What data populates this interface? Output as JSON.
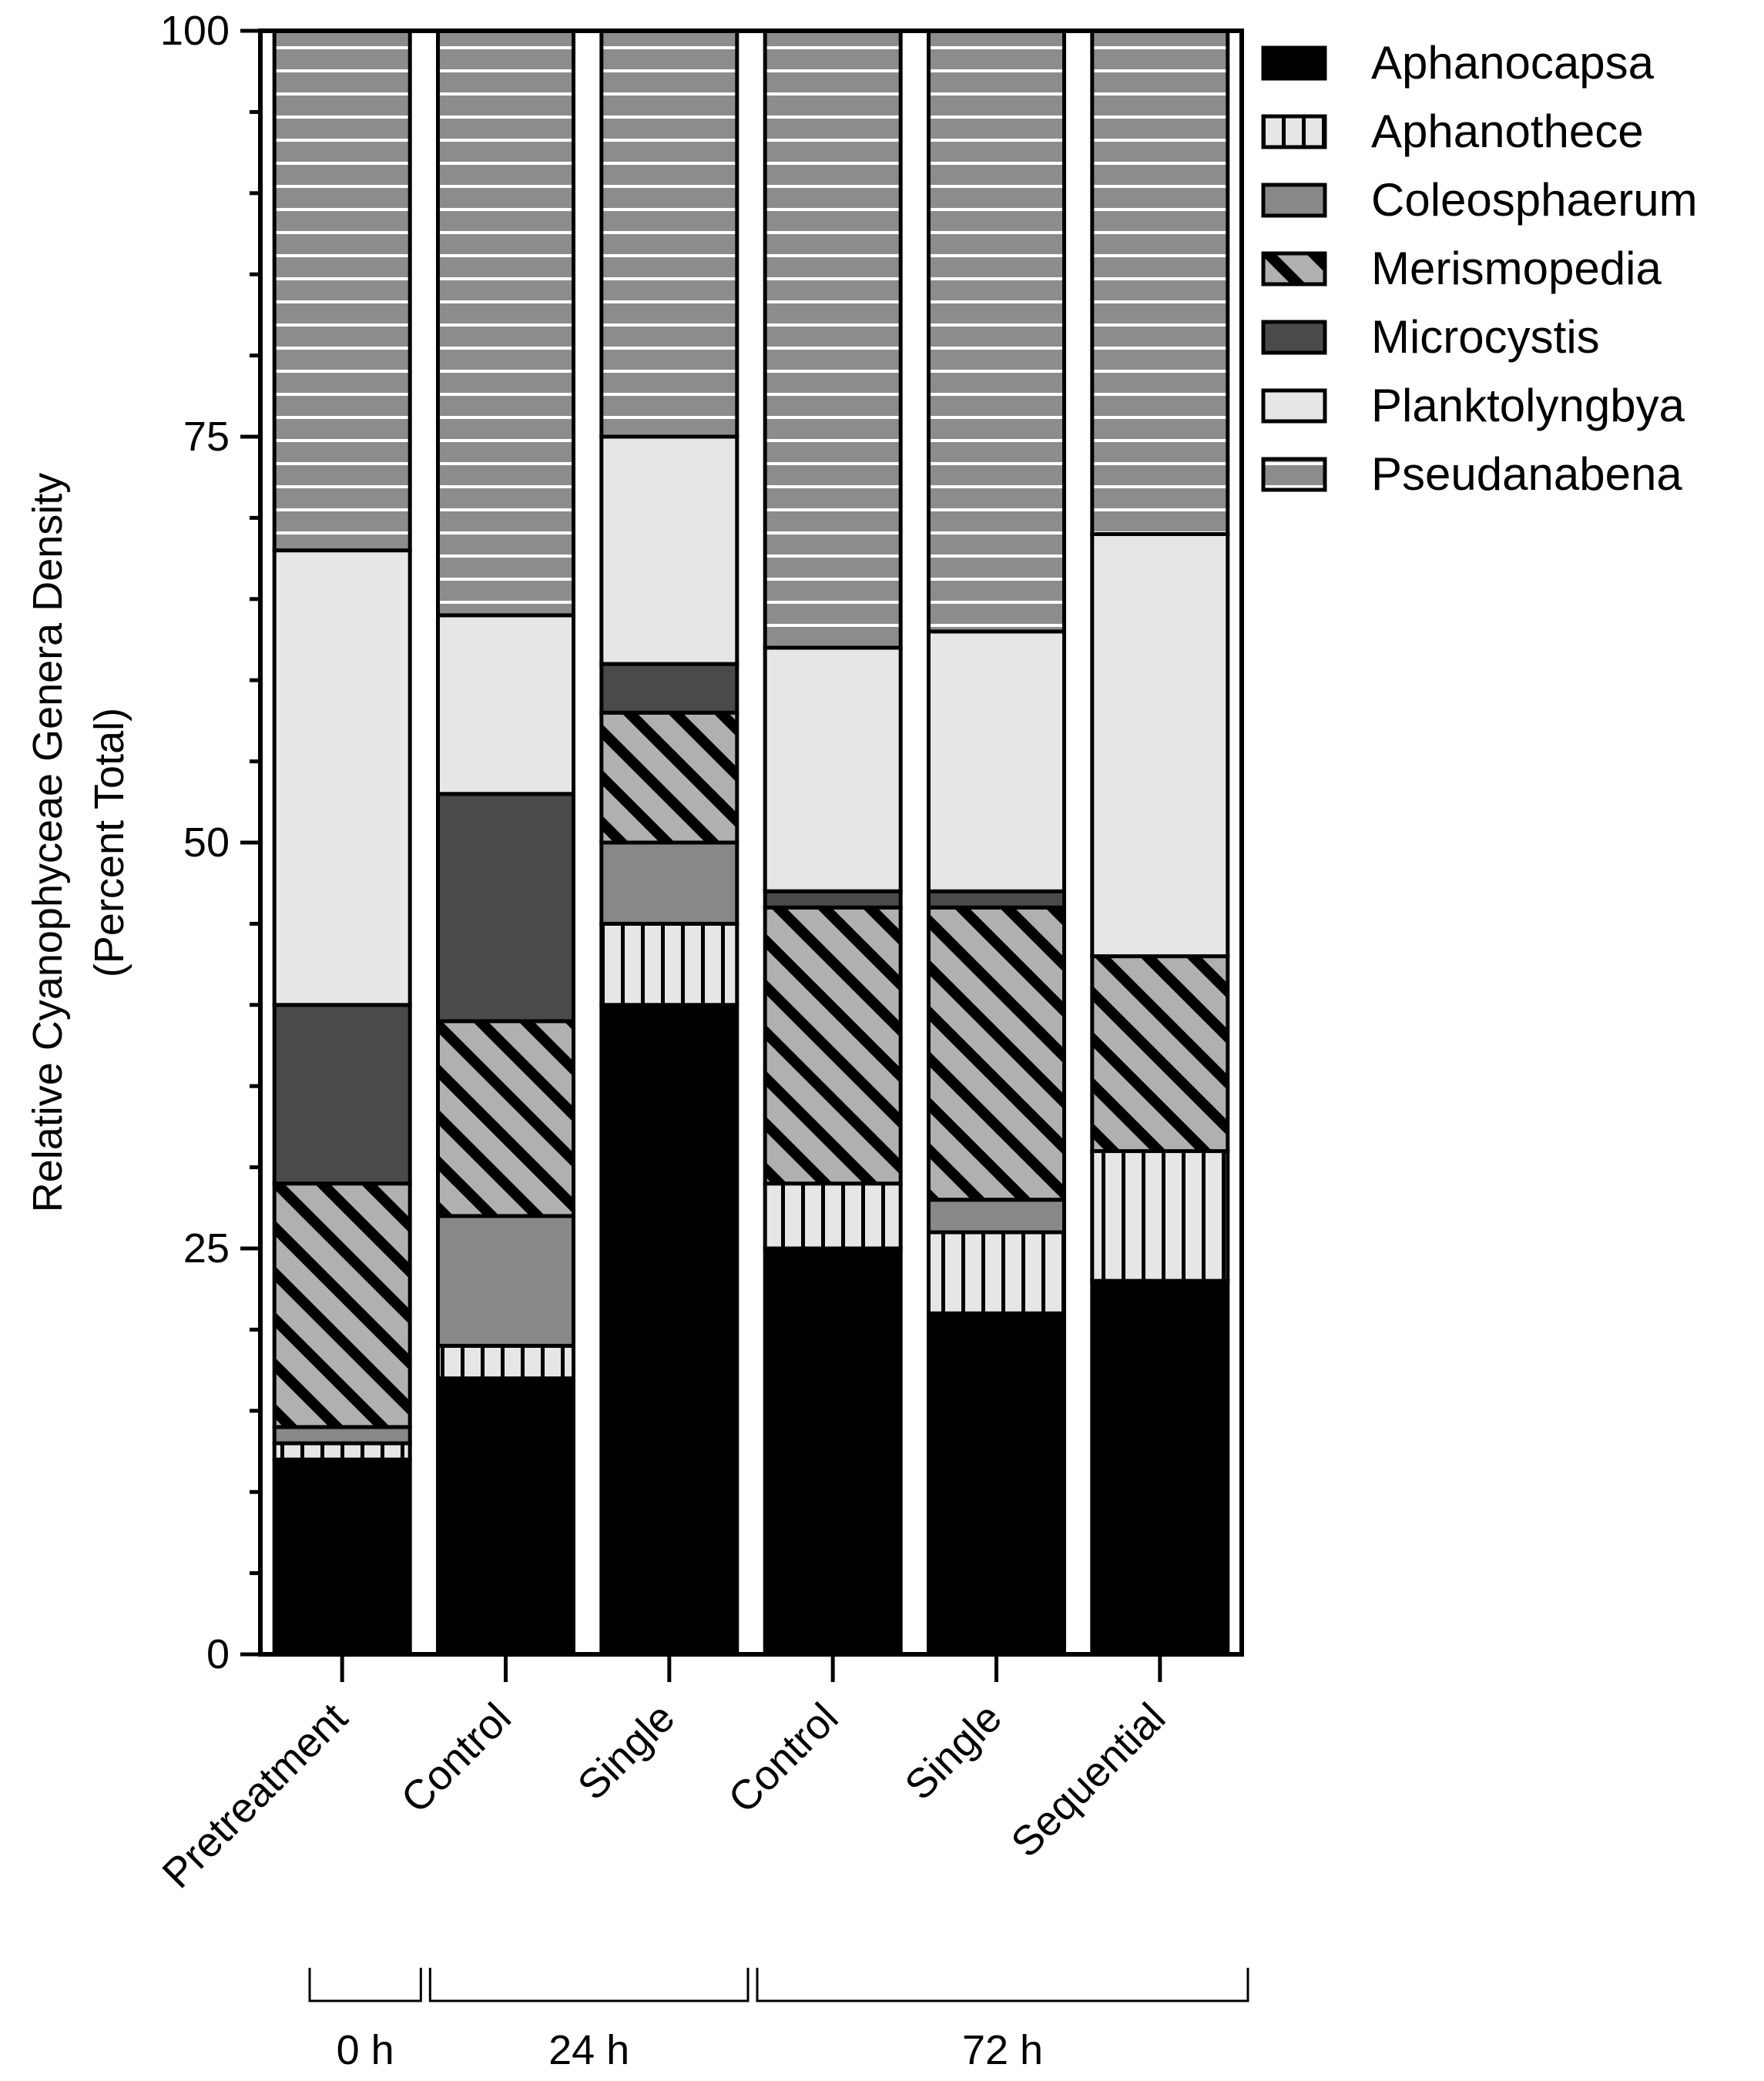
{
  "chart_data": {
    "type": "bar",
    "stacked": true,
    "title": "",
    "xlabel": "",
    "ylabel": [
      "Relative Cyanophyceae Genera Density",
      "(Percent Total)"
    ],
    "ylim": [
      0,
      100
    ],
    "yticks": [
      0,
      25,
      50,
      75,
      100
    ],
    "categories": [
      "Pretreatment",
      "Control",
      "Single",
      "Control",
      "Single",
      "Sequential"
    ],
    "groups": [
      {
        "label": "0 h",
        "start": 0,
        "end": 0
      },
      {
        "label": "24 h",
        "start": 1,
        "end": 2
      },
      {
        "label": "72 h",
        "start": 3,
        "end": 5
      }
    ],
    "legend_position": "top-right",
    "series": [
      {
        "name": "Aphanocapsa",
        "pattern": "solid-black",
        "values": [
          12,
          17,
          40,
          25,
          21,
          23
        ]
      },
      {
        "name": "Aphanothece",
        "pattern": "vertical-stripes",
        "values": [
          1,
          2,
          5,
          4,
          5,
          8
        ]
      },
      {
        "name": "Coleosphaerum",
        "pattern": "solid-mid-gray",
        "values": [
          1,
          8,
          5,
          0,
          2,
          0
        ]
      },
      {
        "name": "Merismopedia",
        "pattern": "diagonal-stripes",
        "values": [
          15,
          12,
          8,
          17,
          18,
          12
        ]
      },
      {
        "name": "Microcystis",
        "pattern": "solid-dark-gray",
        "values": [
          11,
          14,
          3,
          1,
          1,
          0
        ]
      },
      {
        "name": "Planktolyngbya",
        "pattern": "solid-light-gray",
        "values": [
          28,
          11,
          14,
          15,
          16,
          26
        ]
      },
      {
        "name": "Pseudanabena",
        "pattern": "horizontal-stripes",
        "values": [
          32,
          36,
          25,
          38,
          37,
          31
        ]
      }
    ],
    "colors": {
      "black": "#000000",
      "dark_gray": "#4a4a4a",
      "mid_gray": "#888888",
      "light_gray": "#e6e6e6",
      "stripe_gray": "#a9a9a9",
      "white": "#ffffff"
    }
  }
}
